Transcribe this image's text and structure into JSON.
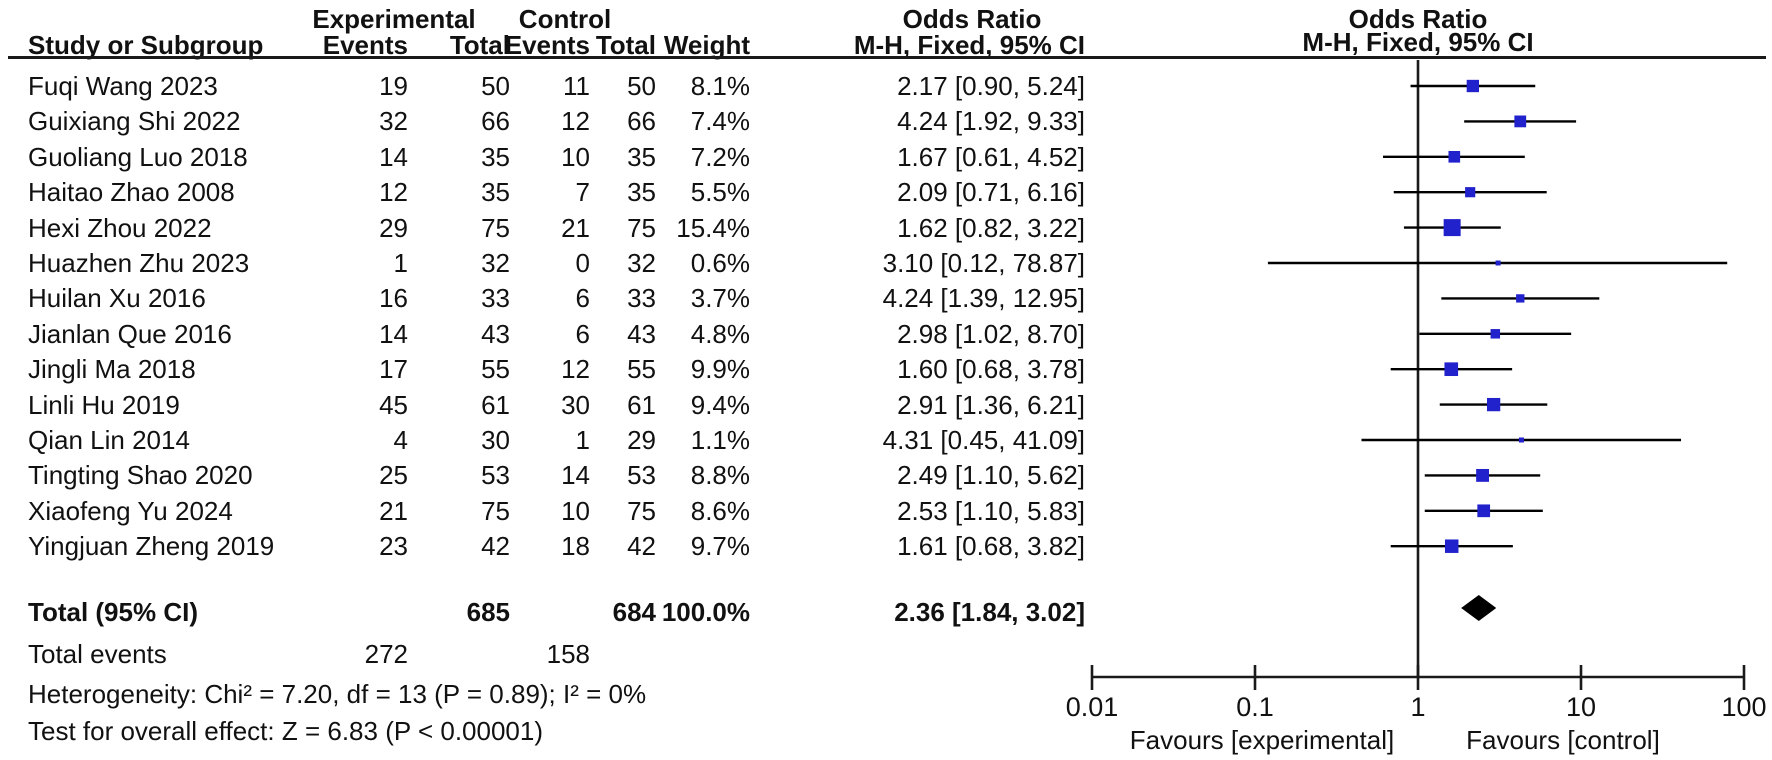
{
  "chart_data": {
    "type": "forest",
    "effect_measure": "Odds Ratio",
    "model": "M-H, Fixed, 95% CI",
    "headers": {
      "group_experimental": "Experimental",
      "group_control": "Control",
      "group_odds_ratio": "Odds Ratio",
      "plot_odds_ratio": "Odds Ratio",
      "study": "Study or Subgroup",
      "events": "Events",
      "total": "Total",
      "events2": "Events",
      "total2": "Total",
      "weight": "Weight",
      "mh_fixed_ci": "M-H, Fixed, 95% CI",
      "plot_mh_fixed_ci": "M-H, Fixed, 95% CI"
    },
    "studies": [
      {
        "name": "Fuqi Wang 2023",
        "exp_events": "19",
        "exp_total": "50",
        "ctrl_events": "11",
        "ctrl_total": "50",
        "weight": "8.1%",
        "weight_value": 8.1,
        "or": 2.17,
        "ci_low": 0.9,
        "ci_high": 5.24,
        "ci_text": "2.17 [0.90, 5.24]"
      },
      {
        "name": "Guixiang Shi 2022",
        "exp_events": "32",
        "exp_total": "66",
        "ctrl_events": "12",
        "ctrl_total": "66",
        "weight": "7.4%",
        "weight_value": 7.4,
        "or": 4.24,
        "ci_low": 1.92,
        "ci_high": 9.33,
        "ci_text": "4.24 [1.92, 9.33]"
      },
      {
        "name": "Guoliang Luo 2018",
        "exp_events": "14",
        "exp_total": "35",
        "ctrl_events": "10",
        "ctrl_total": "35",
        "weight": "7.2%",
        "weight_value": 7.2,
        "or": 1.67,
        "ci_low": 0.61,
        "ci_high": 4.52,
        "ci_text": "1.67 [0.61, 4.52]"
      },
      {
        "name": "Haitao Zhao 2008",
        "exp_events": "12",
        "exp_total": "35",
        "ctrl_events": "7",
        "ctrl_total": "35",
        "weight": "5.5%",
        "weight_value": 5.5,
        "or": 2.09,
        "ci_low": 0.71,
        "ci_high": 6.16,
        "ci_text": "2.09 [0.71, 6.16]"
      },
      {
        "name": "Hexi Zhou 2022",
        "exp_events": "29",
        "exp_total": "75",
        "ctrl_events": "21",
        "ctrl_total": "75",
        "weight": "15.4%",
        "weight_value": 15.4,
        "or": 1.62,
        "ci_low": 0.82,
        "ci_high": 3.22,
        "ci_text": "1.62 [0.82, 3.22]"
      },
      {
        "name": "Huazhen Zhu 2023",
        "exp_events": "1",
        "exp_total": "32",
        "ctrl_events": "0",
        "ctrl_total": "32",
        "weight": "0.6%",
        "weight_value": 0.6,
        "or": 3.1,
        "ci_low": 0.12,
        "ci_high": 78.87,
        "ci_text": "3.10 [0.12, 78.87]"
      },
      {
        "name": "Huilan Xu 2016",
        "exp_events": "16",
        "exp_total": "33",
        "ctrl_events": "6",
        "ctrl_total": "33",
        "weight": "3.7%",
        "weight_value": 3.7,
        "or": 4.24,
        "ci_low": 1.39,
        "ci_high": 12.95,
        "ci_text": "4.24 [1.39, 12.95]"
      },
      {
        "name": "Jianlan Que 2016",
        "exp_events": "14",
        "exp_total": "43",
        "ctrl_events": "6",
        "ctrl_total": "43",
        "weight": "4.8%",
        "weight_value": 4.8,
        "or": 2.98,
        "ci_low": 1.02,
        "ci_high": 8.7,
        "ci_text": "2.98 [1.02, 8.70]"
      },
      {
        "name": "Jingli Ma 2018",
        "exp_events": "17",
        "exp_total": "55",
        "ctrl_events": "12",
        "ctrl_total": "55",
        "weight": "9.9%",
        "weight_value": 9.9,
        "or": 1.6,
        "ci_low": 0.68,
        "ci_high": 3.78,
        "ci_text": "1.60 [0.68, 3.78]"
      },
      {
        "name": "Linli Hu 2019",
        "exp_events": "45",
        "exp_total": "61",
        "ctrl_events": "30",
        "ctrl_total": "61",
        "weight": "9.4%",
        "weight_value": 9.4,
        "or": 2.91,
        "ci_low": 1.36,
        "ci_high": 6.21,
        "ci_text": "2.91 [1.36, 6.21]"
      },
      {
        "name": "Qian Lin 2014",
        "exp_events": "4",
        "exp_total": "30",
        "ctrl_events": "1",
        "ctrl_total": "29",
        "weight": "1.1%",
        "weight_value": 1.1,
        "or": 4.31,
        "ci_low": 0.45,
        "ci_high": 41.09,
        "ci_text": "4.31 [0.45, 41.09]"
      },
      {
        "name": "Tingting Shao 2020",
        "exp_events": "25",
        "exp_total": "53",
        "ctrl_events": "14",
        "ctrl_total": "53",
        "weight": "8.8%",
        "weight_value": 8.8,
        "or": 2.49,
        "ci_low": 1.1,
        "ci_high": 5.62,
        "ci_text": "2.49 [1.10, 5.62]"
      },
      {
        "name": "Xiaofeng Yu 2024",
        "exp_events": "21",
        "exp_total": "75",
        "ctrl_events": "10",
        "ctrl_total": "75",
        "weight": "8.6%",
        "weight_value": 8.6,
        "or": 2.53,
        "ci_low": 1.1,
        "ci_high": 5.83,
        "ci_text": "2.53 [1.10, 5.83]"
      },
      {
        "name": "Yingjuan Zheng 2019",
        "exp_events": "23",
        "exp_total": "42",
        "ctrl_events": "18",
        "ctrl_total": "42",
        "weight": "9.7%",
        "weight_value": 9.7,
        "or": 1.61,
        "ci_low": 0.68,
        "ci_high": 3.82,
        "ci_text": "1.61 [0.68, 3.82]"
      }
    ],
    "total": {
      "label": "Total (95% CI)",
      "exp_total": "685",
      "ctrl_total": "684",
      "weight": "100.0%",
      "or": 2.36,
      "ci_low": 1.84,
      "ci_high": 3.02,
      "ci_text": "2.36 [1.84, 3.02]"
    },
    "total_events": {
      "label": "Total events",
      "exp": "272",
      "ctrl": "158"
    },
    "heterogeneity": "Heterogeneity: Chi² = 7.20, df = 13 (P = 0.89); I² = 0%",
    "overall_effect": "Test for overall effect: Z = 6.83 (P < 0.00001)",
    "axis": {
      "scale": "log",
      "min": 0.01,
      "max": 100,
      "ticks": [
        "0.01",
        "0.1",
        "1",
        "10",
        "100"
      ],
      "left_label": "Favours [experimental]",
      "right_label": "Favours [control]"
    },
    "colors": {
      "square": "#2222cc",
      "ci_line": "#000000",
      "diamond": "#000000",
      "axis": "#1a1a1a"
    }
  }
}
